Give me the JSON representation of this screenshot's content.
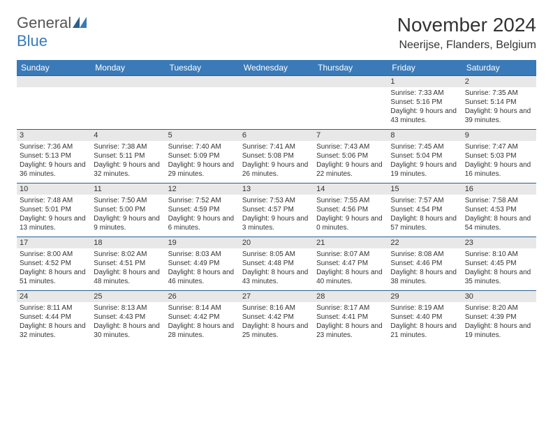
{
  "brand": {
    "part1": "General",
    "part2": "Blue"
  },
  "title": "November 2024",
  "location": "Neerijse, Flanders, Belgium",
  "colors": {
    "header_bg": "#3a7ab8",
    "header_text": "#ffffff",
    "daynum_bg": "#e8e8e8",
    "border": "#2b5f8f",
    "brand_gray": "#555555",
    "brand_blue": "#3a7ab8"
  },
  "day_headers": [
    "Sunday",
    "Monday",
    "Tuesday",
    "Wednesday",
    "Thursday",
    "Friday",
    "Saturday"
  ],
  "weeks": [
    [
      {
        "num": "",
        "lines": []
      },
      {
        "num": "",
        "lines": []
      },
      {
        "num": "",
        "lines": []
      },
      {
        "num": "",
        "lines": []
      },
      {
        "num": "",
        "lines": []
      },
      {
        "num": "1",
        "lines": [
          "Sunrise: 7:33 AM",
          "Sunset: 5:16 PM",
          "Daylight: 9 hours and 43 minutes."
        ]
      },
      {
        "num": "2",
        "lines": [
          "Sunrise: 7:35 AM",
          "Sunset: 5:14 PM",
          "Daylight: 9 hours and 39 minutes."
        ]
      }
    ],
    [
      {
        "num": "3",
        "lines": [
          "Sunrise: 7:36 AM",
          "Sunset: 5:13 PM",
          "Daylight: 9 hours and 36 minutes."
        ]
      },
      {
        "num": "4",
        "lines": [
          "Sunrise: 7:38 AM",
          "Sunset: 5:11 PM",
          "Daylight: 9 hours and 32 minutes."
        ]
      },
      {
        "num": "5",
        "lines": [
          "Sunrise: 7:40 AM",
          "Sunset: 5:09 PM",
          "Daylight: 9 hours and 29 minutes."
        ]
      },
      {
        "num": "6",
        "lines": [
          "Sunrise: 7:41 AM",
          "Sunset: 5:08 PM",
          "Daylight: 9 hours and 26 minutes."
        ]
      },
      {
        "num": "7",
        "lines": [
          "Sunrise: 7:43 AM",
          "Sunset: 5:06 PM",
          "Daylight: 9 hours and 22 minutes."
        ]
      },
      {
        "num": "8",
        "lines": [
          "Sunrise: 7:45 AM",
          "Sunset: 5:04 PM",
          "Daylight: 9 hours and 19 minutes."
        ]
      },
      {
        "num": "9",
        "lines": [
          "Sunrise: 7:47 AM",
          "Sunset: 5:03 PM",
          "Daylight: 9 hours and 16 minutes."
        ]
      }
    ],
    [
      {
        "num": "10",
        "lines": [
          "Sunrise: 7:48 AM",
          "Sunset: 5:01 PM",
          "Daylight: 9 hours and 13 minutes."
        ]
      },
      {
        "num": "11",
        "lines": [
          "Sunrise: 7:50 AM",
          "Sunset: 5:00 PM",
          "Daylight: 9 hours and 9 minutes."
        ]
      },
      {
        "num": "12",
        "lines": [
          "Sunrise: 7:52 AM",
          "Sunset: 4:59 PM",
          "Daylight: 9 hours and 6 minutes."
        ]
      },
      {
        "num": "13",
        "lines": [
          "Sunrise: 7:53 AM",
          "Sunset: 4:57 PM",
          "Daylight: 9 hours and 3 minutes."
        ]
      },
      {
        "num": "14",
        "lines": [
          "Sunrise: 7:55 AM",
          "Sunset: 4:56 PM",
          "Daylight: 9 hours and 0 minutes."
        ]
      },
      {
        "num": "15",
        "lines": [
          "Sunrise: 7:57 AM",
          "Sunset: 4:54 PM",
          "Daylight: 8 hours and 57 minutes."
        ]
      },
      {
        "num": "16",
        "lines": [
          "Sunrise: 7:58 AM",
          "Sunset: 4:53 PM",
          "Daylight: 8 hours and 54 minutes."
        ]
      }
    ],
    [
      {
        "num": "17",
        "lines": [
          "Sunrise: 8:00 AM",
          "Sunset: 4:52 PM",
          "Daylight: 8 hours and 51 minutes."
        ]
      },
      {
        "num": "18",
        "lines": [
          "Sunrise: 8:02 AM",
          "Sunset: 4:51 PM",
          "Daylight: 8 hours and 48 minutes."
        ]
      },
      {
        "num": "19",
        "lines": [
          "Sunrise: 8:03 AM",
          "Sunset: 4:49 PM",
          "Daylight: 8 hours and 46 minutes."
        ]
      },
      {
        "num": "20",
        "lines": [
          "Sunrise: 8:05 AM",
          "Sunset: 4:48 PM",
          "Daylight: 8 hours and 43 minutes."
        ]
      },
      {
        "num": "21",
        "lines": [
          "Sunrise: 8:07 AM",
          "Sunset: 4:47 PM",
          "Daylight: 8 hours and 40 minutes."
        ]
      },
      {
        "num": "22",
        "lines": [
          "Sunrise: 8:08 AM",
          "Sunset: 4:46 PM",
          "Daylight: 8 hours and 38 minutes."
        ]
      },
      {
        "num": "23",
        "lines": [
          "Sunrise: 8:10 AM",
          "Sunset: 4:45 PM",
          "Daylight: 8 hours and 35 minutes."
        ]
      }
    ],
    [
      {
        "num": "24",
        "lines": [
          "Sunrise: 8:11 AM",
          "Sunset: 4:44 PM",
          "Daylight: 8 hours and 32 minutes."
        ]
      },
      {
        "num": "25",
        "lines": [
          "Sunrise: 8:13 AM",
          "Sunset: 4:43 PM",
          "Daylight: 8 hours and 30 minutes."
        ]
      },
      {
        "num": "26",
        "lines": [
          "Sunrise: 8:14 AM",
          "Sunset: 4:42 PM",
          "Daylight: 8 hours and 28 minutes."
        ]
      },
      {
        "num": "27",
        "lines": [
          "Sunrise: 8:16 AM",
          "Sunset: 4:42 PM",
          "Daylight: 8 hours and 25 minutes."
        ]
      },
      {
        "num": "28",
        "lines": [
          "Sunrise: 8:17 AM",
          "Sunset: 4:41 PM",
          "Daylight: 8 hours and 23 minutes."
        ]
      },
      {
        "num": "29",
        "lines": [
          "Sunrise: 8:19 AM",
          "Sunset: 4:40 PM",
          "Daylight: 8 hours and 21 minutes."
        ]
      },
      {
        "num": "30",
        "lines": [
          "Sunrise: 8:20 AM",
          "Sunset: 4:39 PM",
          "Daylight: 8 hours and 19 minutes."
        ]
      }
    ]
  ]
}
